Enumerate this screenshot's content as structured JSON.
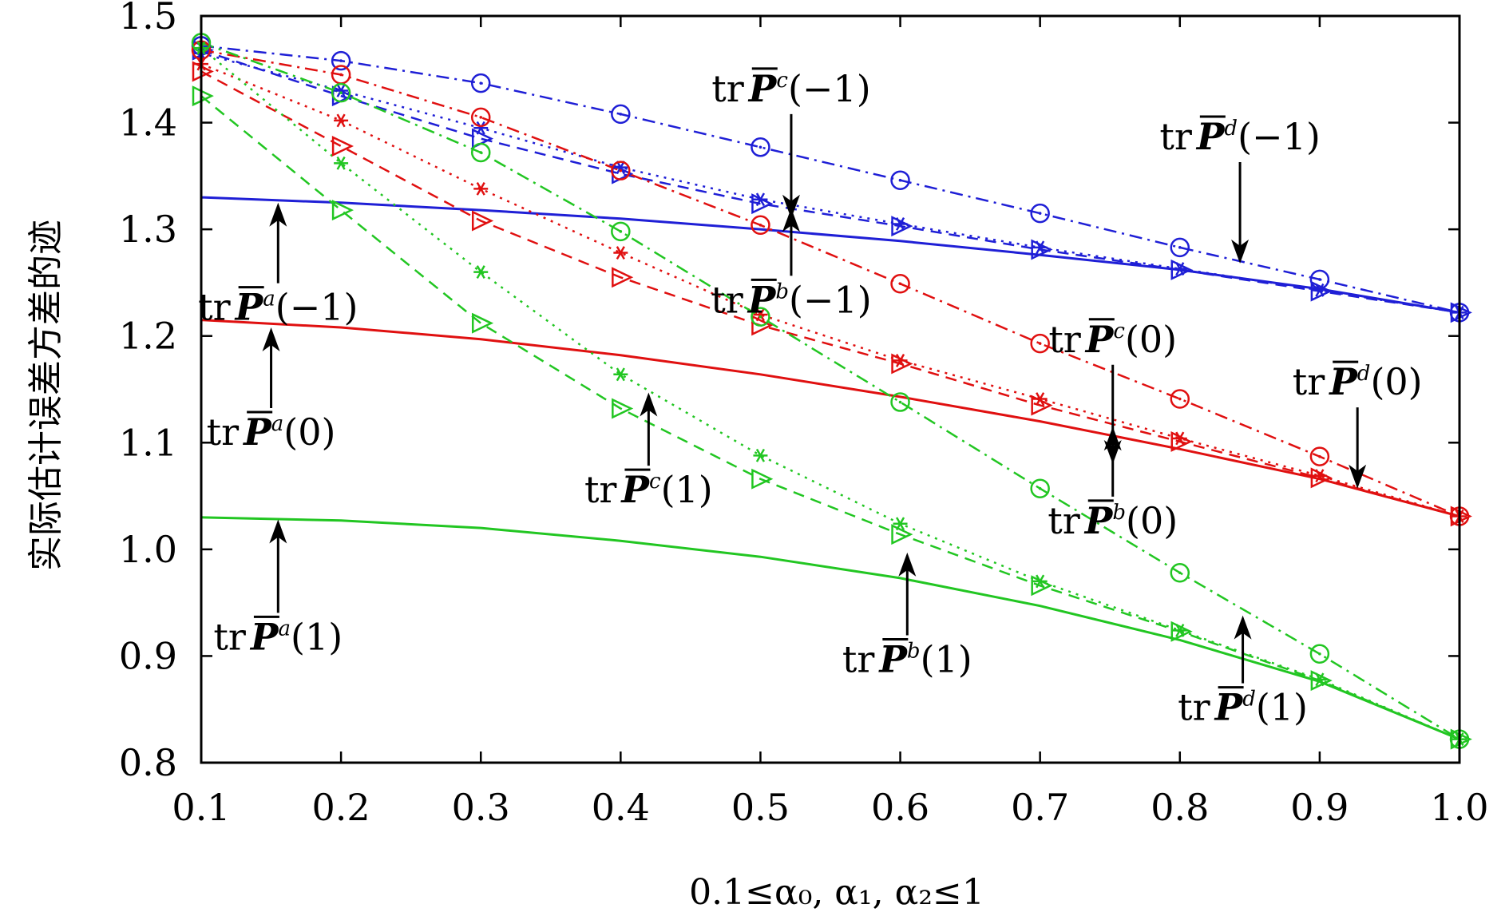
{
  "chart_data": {
    "type": "line",
    "xlabel": "0.1≤α₀, α₁, α₂≤1",
    "ylabel": "实际估计误差方差的迹",
    "xlim": [
      0.1,
      1.0
    ],
    "ylim": [
      0.8,
      1.5
    ],
    "xticks": [
      "0.1",
      "0.2",
      "0.3",
      "0.4",
      "0.5",
      "0.6",
      "0.7",
      "0.8",
      "0.9",
      "1.0"
    ],
    "yticks": [
      "0.8",
      "0.9",
      "1.0",
      "1.1",
      "1.2",
      "1.3",
      "1.4",
      "1.5"
    ],
    "x": [
      0.1,
      0.2,
      0.3,
      0.4,
      0.5,
      0.6,
      0.7,
      0.8,
      0.9,
      1.0
    ],
    "colors": {
      "blue": "#1f1fd6",
      "red": "#e01010",
      "green": "#22c622"
    },
    "series": [
      {
        "name": "trP^a(-1)",
        "color": "blue",
        "style": "solid",
        "marker": "none",
        "values": [
          1.33,
          1.325,
          1.318,
          1.31,
          1.3,
          1.289,
          1.276,
          1.262,
          1.244,
          1.222
        ]
      },
      {
        "name": "trP^b(-1)",
        "color": "blue",
        "style": "dash",
        "marker": "triangle",
        "values": [
          1.468,
          1.425,
          1.385,
          1.352,
          1.324,
          1.303,
          1.281,
          1.262,
          1.242,
          1.222
        ]
      },
      {
        "name": "trP^c(-1)",
        "color": "blue",
        "style": "dot",
        "marker": "star",
        "values": [
          1.465,
          1.43,
          1.395,
          1.358,
          1.328,
          1.305,
          1.283,
          1.263,
          1.243,
          1.222
        ]
      },
      {
        "name": "trP^d(-1)",
        "color": "blue",
        "style": "dashdot",
        "marker": "circle",
        "values": [
          1.472,
          1.458,
          1.437,
          1.408,
          1.377,
          1.346,
          1.315,
          1.283,
          1.253,
          1.222
        ]
      },
      {
        "name": "trP^a(0)",
        "color": "red",
        "style": "solid",
        "marker": "none",
        "values": [
          1.215,
          1.208,
          1.197,
          1.182,
          1.164,
          1.143,
          1.12,
          1.094,
          1.066,
          1.031
        ]
      },
      {
        "name": "trP^b(0)",
        "color": "red",
        "style": "dash",
        "marker": "triangle",
        "values": [
          1.448,
          1.378,
          1.308,
          1.255,
          1.21,
          1.174,
          1.135,
          1.101,
          1.067,
          1.031
        ]
      },
      {
        "name": "trP^c(0)",
        "color": "red",
        "style": "dot",
        "marker": "star",
        "values": [
          1.455,
          1.402,
          1.338,
          1.278,
          1.22,
          1.177,
          1.141,
          1.104,
          1.069,
          1.031
        ]
      },
      {
        "name": "trP^d(0)",
        "color": "red",
        "style": "dashdot",
        "marker": "circle",
        "values": [
          1.468,
          1.445,
          1.405,
          1.355,
          1.304,
          1.249,
          1.193,
          1.141,
          1.087,
          1.031
        ]
      },
      {
        "name": "trP^a(1)",
        "color": "green",
        "style": "solid",
        "marker": "none",
        "values": [
          1.03,
          1.027,
          1.02,
          1.008,
          0.993,
          0.973,
          0.947,
          0.915,
          0.876,
          0.822
        ]
      },
      {
        "name": "trP^b(1)",
        "color": "green",
        "style": "dash",
        "marker": "triangle",
        "values": [
          1.425,
          1.318,
          1.212,
          1.132,
          1.066,
          1.014,
          0.966,
          0.923,
          0.877,
          0.822
        ]
      },
      {
        "name": "trP^c(1)",
        "color": "green",
        "style": "dot",
        "marker": "star",
        "values": [
          1.47,
          1.362,
          1.26,
          1.164,
          1.088,
          1.024,
          0.97,
          0.924,
          0.878,
          0.822
        ]
      },
      {
        "name": "trP^d(1)",
        "color": "green",
        "style": "dashdot",
        "marker": "circle",
        "values": [
          1.475,
          1.428,
          1.372,
          1.298,
          1.218,
          1.138,
          1.057,
          0.978,
          0.902,
          0.822
        ]
      }
    ],
    "annotations": [
      {
        "id": "a-m1",
        "sup": "a",
        "arg": "(−1)",
        "x": 0.155,
        "y": 1.215,
        "ax": 0.155,
        "ay": 1.325,
        "dir": "up"
      },
      {
        "id": "a-0",
        "sup": "a",
        "arg": "(0)",
        "x": 0.15,
        "y": 1.098,
        "ax": 0.15,
        "ay": 1.208,
        "dir": "up"
      },
      {
        "id": "a-1",
        "sup": "a",
        "arg": "(1)",
        "x": 0.155,
        "y": 0.906,
        "ax": 0.155,
        "ay": 1.028,
        "dir": "up"
      },
      {
        "id": "c-m1",
        "sup": "c",
        "arg": "(−1)",
        "x": 0.522,
        "y": 1.42,
        "ax": 0.522,
        "ay": 1.31,
        "dir": "down"
      },
      {
        "id": "b-m1",
        "sup": "b",
        "arg": "(−1)",
        "x": 0.522,
        "y": 1.222,
        "ax": 0.522,
        "ay": 1.32,
        "dir": "up"
      },
      {
        "id": "d-m1",
        "sup": "d",
        "arg": "(−1)",
        "x": 0.843,
        "y": 1.375,
        "ax": 0.843,
        "ay": 1.268,
        "dir": "down"
      },
      {
        "id": "c-0",
        "sup": "c",
        "arg": "(0)",
        "x": 0.752,
        "y": 1.185,
        "ax": 0.752,
        "ay": 1.08,
        "dir": "down"
      },
      {
        "id": "d-0",
        "sup": "d",
        "arg": "(0)",
        "x": 0.927,
        "y": 1.145,
        "ax": 0.927,
        "ay": 1.057,
        "dir": "down"
      },
      {
        "id": "b-0",
        "sup": "b",
        "arg": "(0)",
        "x": 0.752,
        "y": 1.015,
        "ax": 0.752,
        "ay": 1.115,
        "dir": "up"
      },
      {
        "id": "c-1",
        "sup": "c",
        "arg": "(1)",
        "x": 0.42,
        "y": 1.044,
        "ax": 0.42,
        "ay": 1.147,
        "dir": "up"
      },
      {
        "id": "b-1",
        "sup": "b",
        "arg": "(1)",
        "x": 0.605,
        "y": 0.885,
        "ax": 0.605,
        "ay": 0.997,
        "dir": "up"
      },
      {
        "id": "d-1",
        "sup": "d",
        "arg": "(1)",
        "x": 0.845,
        "y": 0.84,
        "ax": 0.845,
        "ay": 0.938,
        "dir": "up"
      }
    ]
  }
}
